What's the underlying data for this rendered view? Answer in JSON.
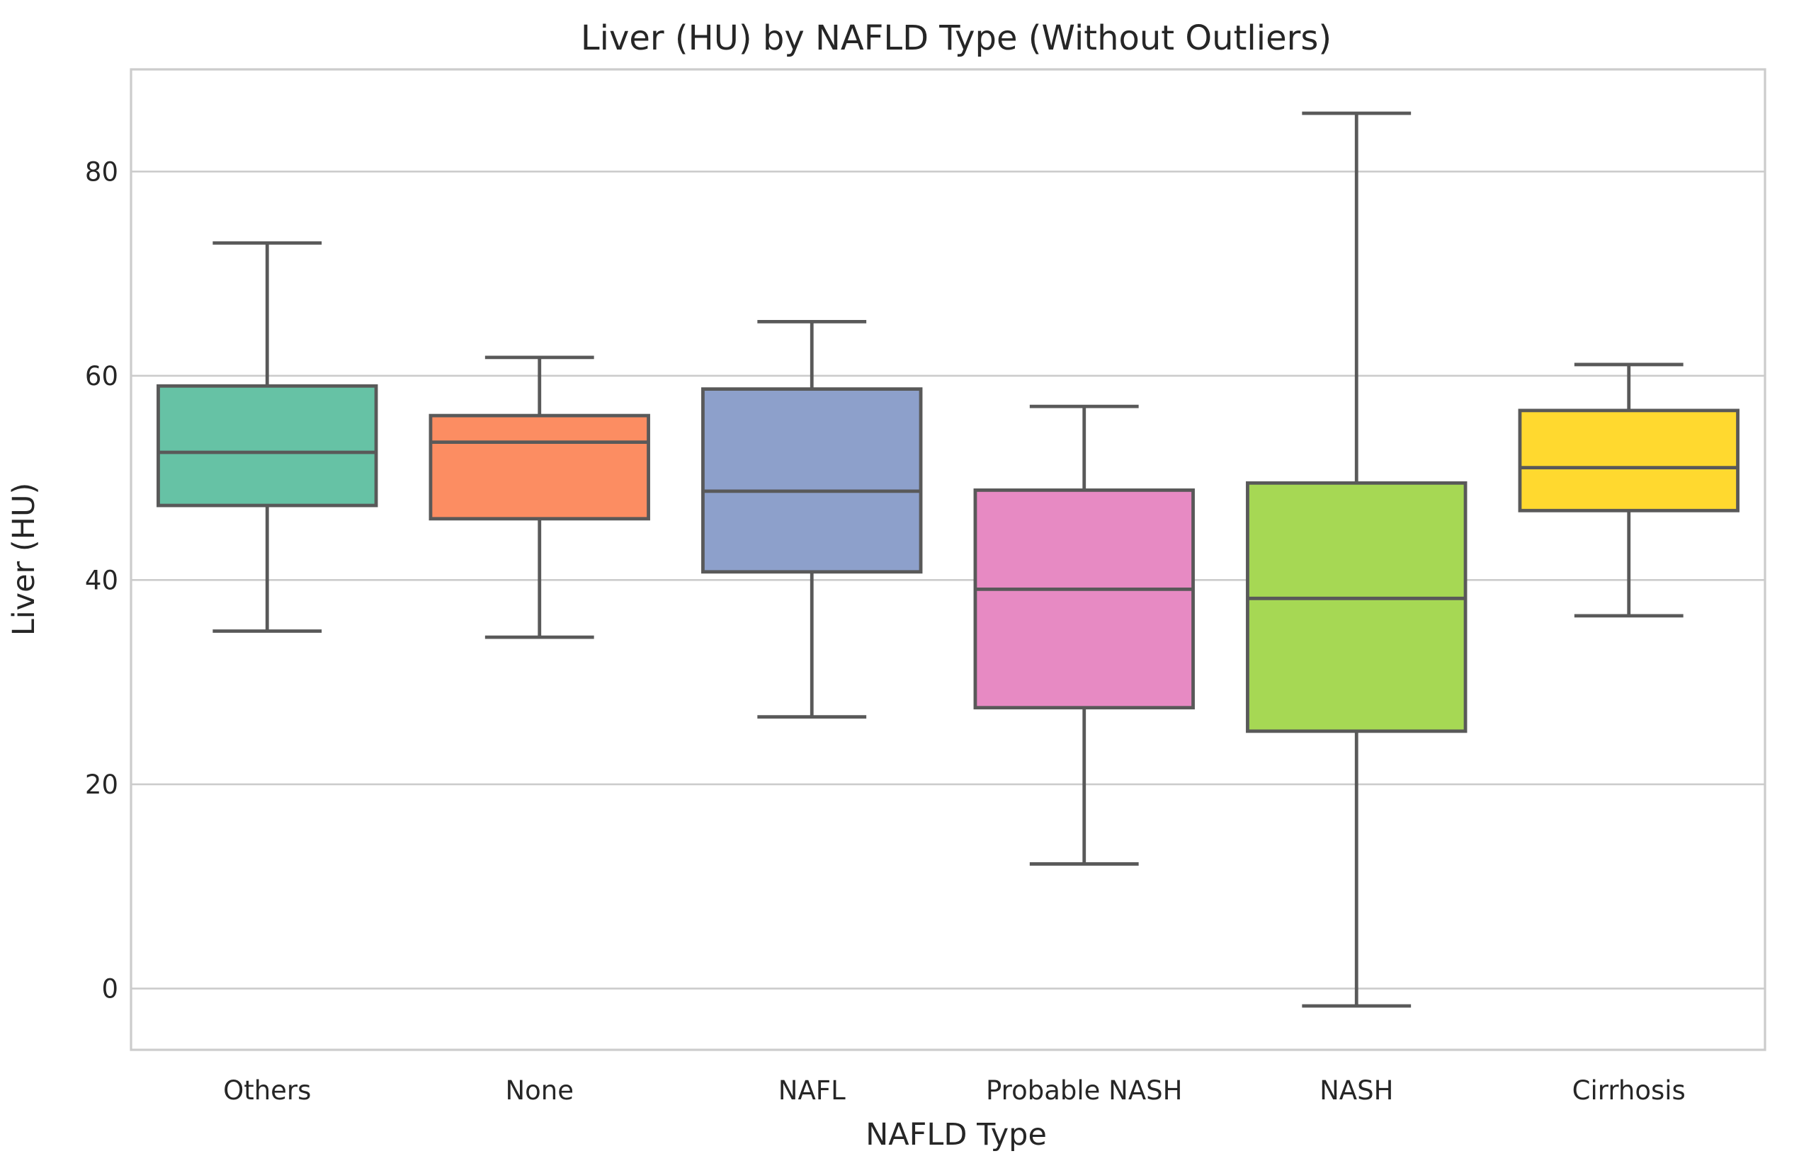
{
  "chart_data": {
    "type": "box",
    "title": "Liver (HU) by NAFLD Type (Without Outliers)",
    "xlabel": "NAFLD Type",
    "ylabel": "Liver (HU)",
    "ylim": [
      -6,
      90
    ],
    "yticks": [
      0,
      20,
      40,
      60,
      80
    ],
    "grid": true,
    "categories": [
      "Others",
      "None",
      "NAFL",
      "Probable NASH",
      "NASH",
      "Cirrhosis"
    ],
    "boxes": [
      {
        "category": "Others",
        "whisker_low": 35,
        "q1": 47.3,
        "median": 52.5,
        "q3": 59,
        "whisker_high": 73,
        "color": "#66c2a5"
      },
      {
        "category": "None",
        "whisker_low": 34.4,
        "q1": 46,
        "median": 53.5,
        "q3": 56.1,
        "whisker_high": 61.8,
        "color": "#fc8d62"
      },
      {
        "category": "NAFL",
        "whisker_low": 26.6,
        "q1": 40.8,
        "median": 48.7,
        "q3": 58.7,
        "whisker_high": 65.3,
        "color": "#8da0cb"
      },
      {
        "category": "Probable NASH",
        "whisker_low": 12.2,
        "q1": 27.5,
        "median": 39.1,
        "q3": 48.8,
        "whisker_high": 57,
        "color": "#e78ac3"
      },
      {
        "category": "NASH",
        "whisker_low": -1.7,
        "q1": 25.2,
        "median": 38.2,
        "q3": 49.5,
        "whisker_high": 85.7,
        "color": "#a6d854"
      },
      {
        "category": "Cirrhosis",
        "whisker_low": 36.5,
        "q1": 46.8,
        "median": 51,
        "q3": 56.6,
        "whisker_high": 61.1,
        "color": "#ffd92f"
      }
    ]
  }
}
